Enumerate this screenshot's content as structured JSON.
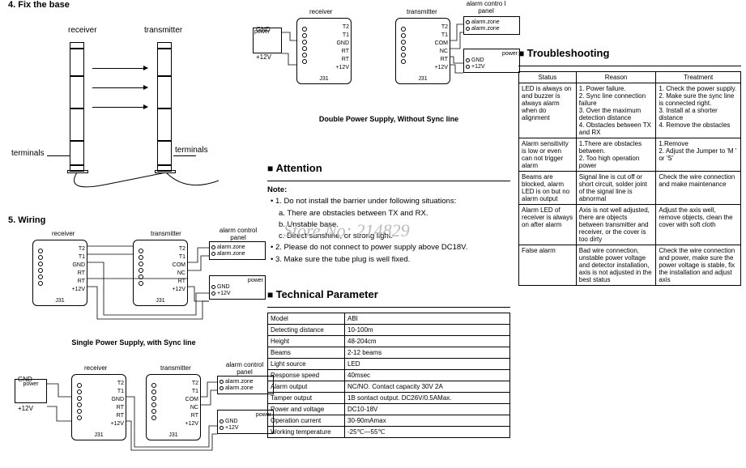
{
  "section4": {
    "title": "4. Fix the base",
    "receiver": "receiver",
    "transmitter": "transmitter",
    "terminals_l": "terminals",
    "terminals_r": "terminals"
  },
  "section5": {
    "title": "5. Wiring",
    "diag1_caption": "Single Power Supply, with Sync line",
    "diag2_caption": "Double Power Supply,  Without Sync line",
    "labels": {
      "receiver": "receiver",
      "transmitter": "transmitter",
      "alarm_panel": "alarm control panel",
      "alarm_panel2": "alarm contro l panel",
      "power": "power",
      "gnd": "GND",
      "p12v": "+12V",
      "alarm_zone": "alarm.zone",
      "j31": "J31"
    },
    "pins_rx": [
      "T2",
      "T1",
      "GND",
      "RT",
      "RT",
      "+12V"
    ],
    "pins_tx": [
      "T2",
      "T1",
      "COM",
      "NC",
      "RT",
      "+12V"
    ]
  },
  "attention": {
    "heading": "Attention",
    "note_label": "Note:",
    "l1": "1. Do not install the barrier under following situations:",
    "l1a": "a. There are obstacles between TX and RX.",
    "l1b": "b. Unstable base.",
    "l1c": "c. Direct sunshine, or strong light.",
    "l2": "2. Please do not connect to power supply above DC18V.",
    "l3": "3. Make sure the tube plug is well fixed."
  },
  "watermark": "Store No: 214829",
  "tech": {
    "heading": "Technical Parameter",
    "rows": [
      [
        "Model",
        "ABI"
      ],
      [
        "Detecting distance",
        "10-100m"
      ],
      [
        "Height",
        "48-204cm"
      ],
      [
        "Beams",
        "2-12 beams"
      ],
      [
        "Light source",
        "LED"
      ],
      [
        "Response speed",
        "40msec"
      ],
      [
        "Alarm output",
        "NC/NO. Contact capacity 30V 2A"
      ],
      [
        "Tamper output",
        "1B sontact output.  DC26V/0.5AMax."
      ],
      [
        "Power and voltage",
        "DC10-18V"
      ],
      [
        "Operation current",
        "30-90mAmax"
      ],
      [
        "Working temperature",
        "-25℃—55℃"
      ]
    ]
  },
  "trouble": {
    "heading": "Troubleshooting",
    "headers": [
      "Status",
      "Reason",
      "Treatment"
    ],
    "rows": [
      [
        "LED is always on and buzzer is always alarm when do alignment",
        "1. Power failure.\n2. Sync line connection failure\n3. Over the maximum detection distance\n4. Obstacles between TX and RX",
        "1. Check the power supply.\n2. Make sure the sync line is connected right.\n3. Install at a shorter distance\n4. Remove the obstacles"
      ],
      [
        "Alarm sensitivity is low or even can not trigger alarm",
        "1.There are obstacles between.\n2. Too high operation power",
        "1.Remove\n2. Adjust the Jumper to 'M ' or 'S'"
      ],
      [
        "Beams are blocked, alarm LED is on but no alarm output",
        "Signal line is cut off or short circuit, solder joint of the signal line is abnormal",
        "Check the wire connection and make maintenance"
      ],
      [
        "Alarm LED of receiver is always on after alarm",
        "Axis is not well adjusted, there are objects between transmitter and receiver, or the cover is too dirty",
        "Adjust the axis well, remove objects, clean the cover with soft cloth"
      ],
      [
        "False alarm",
        "Bad wire connection, unstable power voltage and detector installation, axis is not adjusted in the best status",
        "Check the wire connection and power, make sure the power voltage is stable, fix the installation and adjust axis"
      ]
    ]
  },
  "colors": {
    "line": "#000000",
    "watermark": "#bbbbbb"
  }
}
